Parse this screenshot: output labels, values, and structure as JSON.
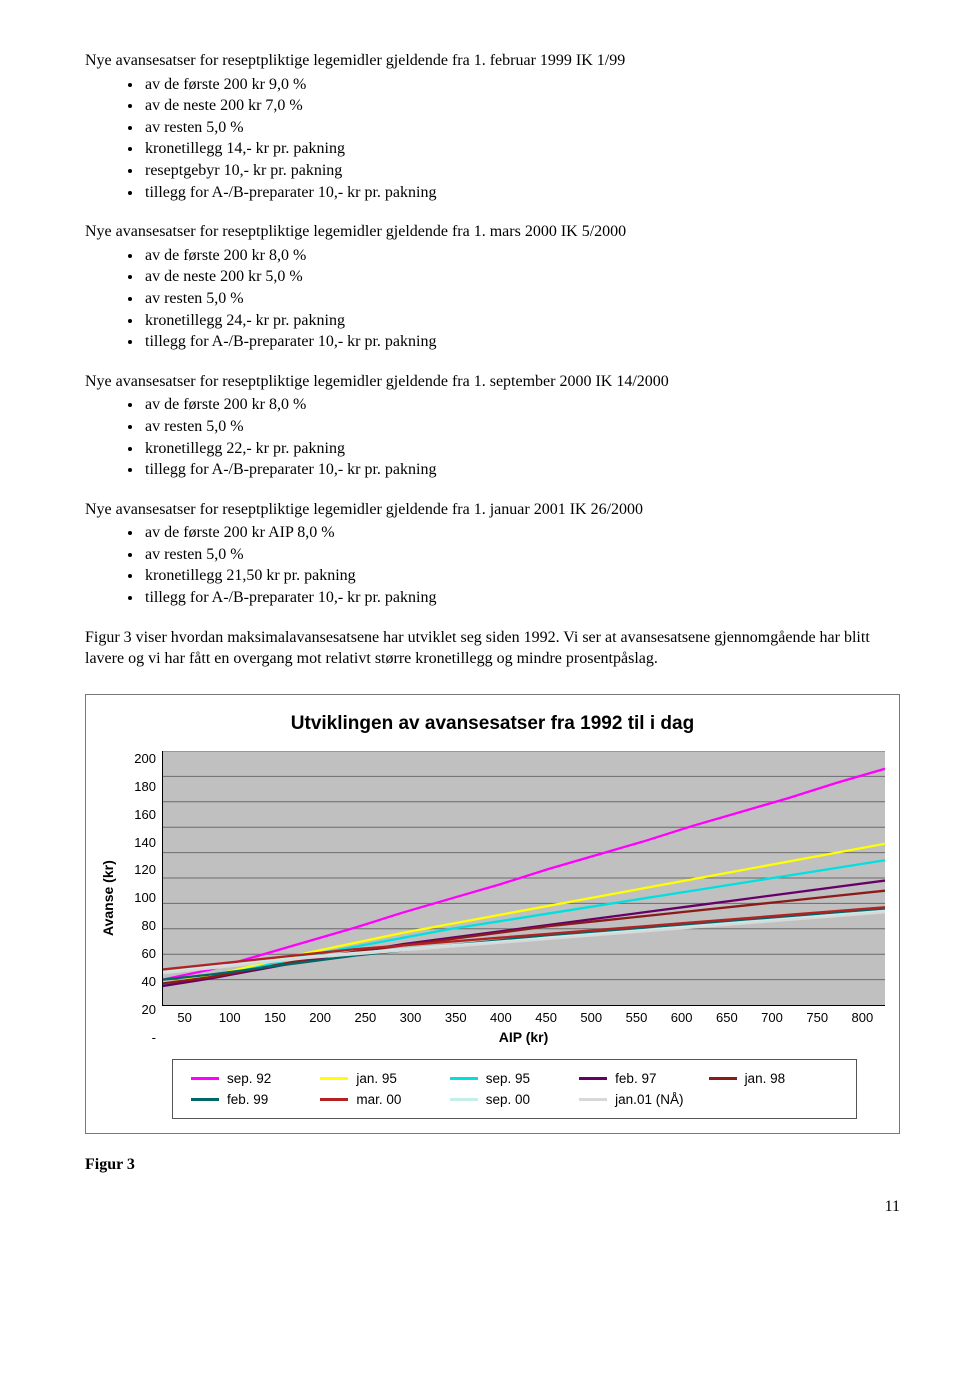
{
  "sections": [
    {
      "heading": "Nye avansesatser for reseptpliktige legemidler gjeldende fra 1. februar 1999 IK 1/99",
      "items": [
        "av de første 200 kr 9,0 %",
        "av de neste 200 kr 7,0 %",
        "av resten 5,0 %",
        "kronetillegg 14,- kr pr. pakning",
        "reseptgebyr 10,- kr pr. pakning",
        "tillegg for A-/B-preparater 10,- kr pr. pakning"
      ]
    },
    {
      "heading": "Nye avansesatser for reseptpliktige legemidler gjeldende fra 1. mars 2000 IK 5/2000",
      "items": [
        "av de første 200 kr 8,0 %",
        "av de neste 200 kr 5,0 %",
        "av resten 5,0 %",
        "kronetillegg 24,- kr pr. pakning",
        "tillegg for A-/B-preparater 10,- kr pr. pakning"
      ]
    },
    {
      "heading": "Nye avansesatser for reseptpliktige legemidler gjeldende fra 1. september 2000 IK 14/2000",
      "items": [
        "av de første 200 kr 8,0 %",
        "av resten 5,0 %",
        "kronetillegg 22,- kr pr. pakning",
        "tillegg for A-/B-preparater 10,- kr pr. pakning"
      ]
    },
    {
      "heading": "Nye avansesatser for reseptpliktige legemidler gjeldende fra 1. januar 2001 IK 26/2000",
      "items": [
        "av de første 200 kr AIP 8,0 %",
        "av resten 5,0 %",
        "kronetillegg 21,50 kr pr. pakning",
        "tillegg for A-/B-preparater 10,- kr pr. pakning"
      ]
    }
  ],
  "paragraph": "Figur 3 viser hvordan maksimalavansesatsene har utviklet seg siden 1992. Vi ser at avansesatsene gjennomgående har blitt lavere og vi har fått en overgang mot relativt større kronetillegg og mindre prosentpåslag.",
  "chart": {
    "title": "Utviklingen av avansesatser fra 1992 til i dag",
    "type": "line",
    "background_color": "#c0c0c0",
    "grid_color": "#6b6b6b",
    "x_title": "AIP (kr)",
    "y_title": "Avanse (kr)",
    "x_ticks": [
      50,
      100,
      150,
      200,
      250,
      300,
      350,
      400,
      450,
      500,
      550,
      600,
      650,
      700,
      750,
      800
    ],
    "y_ticks": [
      "200",
      "180",
      "160",
      "140",
      "120",
      "100",
      "80",
      "60",
      "40",
      "20",
      "-"
    ],
    "ylim": [
      0,
      200
    ],
    "xlim": [
      50,
      800
    ],
    "line_width": 2.3,
    "series": [
      {
        "label": "sep. 92",
        "color": "#ff00ff",
        "values": [
          20,
          28,
          39,
          50,
          61,
          73,
          84,
          95,
          107,
          118,
          129,
          141,
          152,
          163,
          175,
          186
        ]
      },
      {
        "label": "jan. 95",
        "color": "#ffff00",
        "values": [
          17,
          23,
          32,
          41,
          49,
          57,
          64,
          71,
          78,
          85,
          92,
          99,
          106,
          113,
          120,
          127
        ]
      },
      {
        "label": "sep. 95",
        "color": "#00e0e0",
        "values": [
          16,
          22,
          30,
          39,
          46,
          53,
          60,
          66,
          72,
          78,
          84,
          90,
          96,
          102,
          108,
          114
        ]
      },
      {
        "label": "feb. 97",
        "color": "#660066",
        "values": [
          15,
          21,
          28,
          35,
          42,
          48,
          53,
          58,
          63,
          68,
          73,
          78,
          83,
          88,
          93,
          98
        ]
      },
      {
        "label": "jan. 98",
        "color": "#8b1a1a",
        "values": [
          17,
          22,
          29,
          36,
          42,
          47,
          52,
          57,
          62,
          66,
          70,
          74,
          78,
          82,
          86,
          90
        ]
      },
      {
        "label": "feb. 99",
        "color": "#006666",
        "values": [
          20,
          24,
          29,
          34,
          39,
          43,
          47,
          51,
          55,
          58,
          61,
          64,
          67,
          70,
          73,
          76
        ]
      },
      {
        "label": "mar. 00",
        "color": "#b22222",
        "values": [
          28,
          32,
          36,
          40,
          44,
          47,
          50,
          53,
          56,
          59,
          62,
          65,
          68,
          71,
          74,
          77
        ]
      },
      {
        "label": "sep. 00",
        "color": "#c7ecec",
        "values": [
          26,
          30,
          34,
          38,
          41,
          44,
          47,
          50,
          53,
          56,
          59,
          62,
          65,
          68,
          71,
          74
        ]
      },
      {
        "label": "jan.01 (NÅ)",
        "color": "#d8d8d8",
        "values": [
          25,
          29,
          33,
          37,
          40,
          43,
          46,
          49,
          52,
          55,
          58,
          61,
          64,
          67,
          70,
          73
        ]
      }
    ]
  },
  "figure_label": "Figur 3",
  "page_number": "11"
}
